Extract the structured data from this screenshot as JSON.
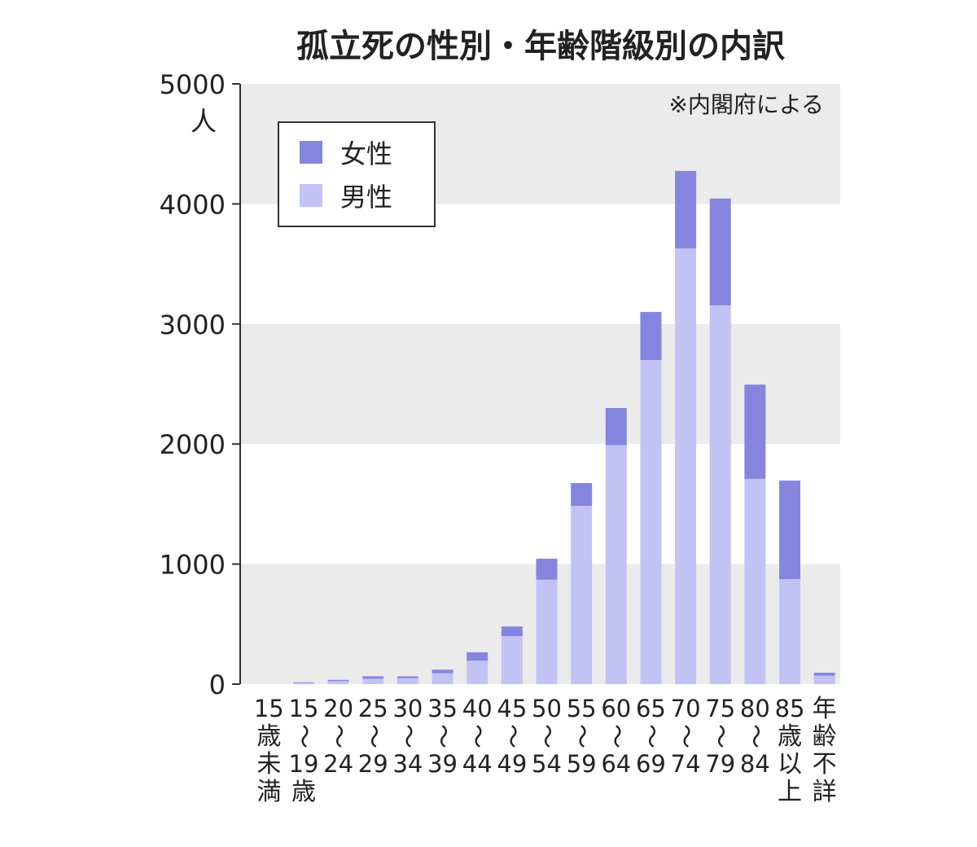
{
  "chart_data": {
    "type": "bar",
    "stacked": true,
    "title": "孤立死の性別・年齢階級別の内訳",
    "source_note": "※内閣府による",
    "ylabel": "人",
    "ylim": [
      0,
      5000
    ],
    "yticks": [
      "0",
      "1000",
      "2000",
      "3000",
      "4000",
      "5000"
    ],
    "grid": "alternating horizontal bands",
    "legend_position": "top-left",
    "categories": [
      [
        "15",
        "歳",
        "未",
        "満"
      ],
      [
        "15",
        "〜",
        "19",
        "歳"
      ],
      [
        "20",
        "〜",
        "24"
      ],
      [
        "25",
        "〜",
        "29"
      ],
      [
        "30",
        "〜",
        "34"
      ],
      [
        "35",
        "〜",
        "39"
      ],
      [
        "40",
        "〜",
        "44"
      ],
      [
        "45",
        "〜",
        "49"
      ],
      [
        "50",
        "〜",
        "54"
      ],
      [
        "55",
        "〜",
        "59"
      ],
      [
        "60",
        "〜",
        "64"
      ],
      [
        "65",
        "〜",
        "69"
      ],
      [
        "70",
        "〜",
        "74"
      ],
      [
        "75",
        "〜",
        "79"
      ],
      [
        "80",
        "〜",
        "84"
      ],
      [
        "85",
        "歳",
        "以",
        "上"
      ],
      [
        "年",
        "齢",
        "不",
        "詳"
      ]
    ],
    "series": [
      {
        "name": "男性",
        "color": "#c2c2f5",
        "values": [
          0,
          10,
          25,
          45,
          50,
          90,
          195,
          400,
          870,
          1485,
          1990,
          2700,
          3630,
          3155,
          1710,
          875,
          70
        ]
      },
      {
        "name": "女性",
        "color": "#8585e0",
        "values": [
          0,
          5,
          10,
          20,
          15,
          30,
          70,
          80,
          175,
          190,
          310,
          400,
          645,
          890,
          785,
          820,
          25
        ]
      }
    ]
  }
}
